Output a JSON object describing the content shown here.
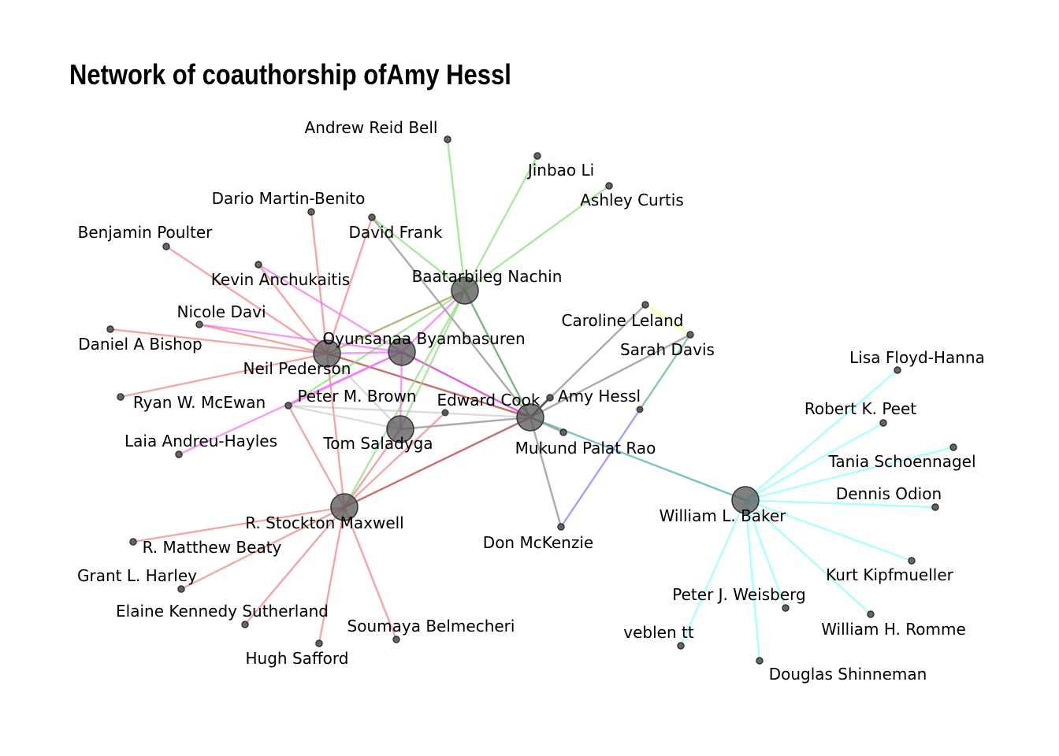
{
  "title": "Network of coauthorship ofAmy Hessl",
  "colors": {
    "node_fill": "#555555",
    "node_stroke": "#333333",
    "red": "#f08080",
    "darkred": "#b03030",
    "green": "#88dd77",
    "darkgreen": "#449944",
    "olive": "#999944",
    "pink": "#f070f0",
    "magenta": "#cc22cc",
    "gray": "#888888",
    "lightgray": "#cccccc",
    "cyan": "#88ffff",
    "teal": "#44aaaa",
    "blue": "#7777ff",
    "yellow": "#ffff66",
    "black": "#000000"
  },
  "nodes": [
    {
      "id": "amy",
      "label": "Amy Hessl",
      "hub": false
    },
    {
      "id": "baatar",
      "label": "Baatarbileg Nachin",
      "hub": true
    },
    {
      "id": "oyun",
      "label": "Oyunsanaa Byambasuren",
      "hub": true
    },
    {
      "id": "neil",
      "label": "Neil Pederson",
      "hub": true
    },
    {
      "id": "tom",
      "label": "Tom Saladyga",
      "hub": true
    },
    {
      "id": "edward",
      "label": "Edward Cook",
      "hub": true
    },
    {
      "id": "rsm",
      "label": "R. Stockton Maxwell",
      "hub": true
    },
    {
      "id": "wlb",
      "label": "William L. Baker",
      "hub": true
    },
    {
      "id": "andrew",
      "label": "Andrew Reid Bell",
      "hub": false
    },
    {
      "id": "jinbao",
      "label": "Jinbao Li",
      "hub": false
    },
    {
      "id": "ashley",
      "label": "Ashley Curtis",
      "hub": false
    },
    {
      "id": "dario",
      "label": "Dario Martin-Benito",
      "hub": false
    },
    {
      "id": "david",
      "label": "David Frank",
      "hub": false
    },
    {
      "id": "benjamin",
      "label": "Benjamin Poulter",
      "hub": false
    },
    {
      "id": "kevin",
      "label": "Kevin Anchukaitis",
      "hub": false
    },
    {
      "id": "nicole",
      "label": "Nicole Davi",
      "hub": false
    },
    {
      "id": "daniel",
      "label": "Daniel A Bishop",
      "hub": false
    },
    {
      "id": "ryan",
      "label": "Ryan W. McEwan",
      "hub": false
    },
    {
      "id": "peterb",
      "label": "Peter M. Brown",
      "hub": false
    },
    {
      "id": "laia",
      "label": "Laia Andreu-Hayles",
      "hub": false
    },
    {
      "id": "caroline",
      "label": "Caroline Leland",
      "hub": false
    },
    {
      "id": "sarah",
      "label": "Sarah Davis",
      "hub": false
    },
    {
      "id": "mukund",
      "label": "Mukund Palat Rao",
      "hub": false
    },
    {
      "id": "don",
      "label": "Don McKenzie",
      "hub": false
    },
    {
      "id": "rmb",
      "label": "R. Matthew Beaty",
      "hub": false
    },
    {
      "id": "grant",
      "label": "Grant L. Harley",
      "hub": false
    },
    {
      "id": "elaine",
      "label": "Elaine Kennedy Sutherland",
      "hub": false
    },
    {
      "id": "hugh",
      "label": "Hugh Safford",
      "hub": false
    },
    {
      "id": "soumaya",
      "label": "Soumaya Belmecheri",
      "hub": false
    },
    {
      "id": "lisa",
      "label": "Lisa Floyd-Hanna",
      "hub": false
    },
    {
      "id": "robert",
      "label": "Robert K. Peet",
      "hub": false
    },
    {
      "id": "tania",
      "label": "Tania Schoennagel",
      "hub": false
    },
    {
      "id": "dennis",
      "label": "Dennis Odion",
      "hub": false
    },
    {
      "id": "kurt",
      "label": "Kurt Kipfmueller",
      "hub": false
    },
    {
      "id": "peterw",
      "label": "Peter J. Weisberg",
      "hub": false
    },
    {
      "id": "william",
      "label": "William H. Romme",
      "hub": false
    },
    {
      "id": "veblen",
      "label": "veblen tt",
      "hub": false
    },
    {
      "id": "douglas",
      "label": "Douglas Shinneman",
      "hub": false
    }
  ],
  "edges": [
    [
      "edward",
      "baatar",
      "darkgreen"
    ],
    [
      "edward",
      "neil",
      "darkred"
    ],
    [
      "edward",
      "tom",
      "gray"
    ],
    [
      "edward",
      "rsm",
      "darkred"
    ],
    [
      "edward",
      "wlb",
      "teal"
    ],
    [
      "edward",
      "oyun",
      "magenta"
    ],
    [
      "edward",
      "amy",
      "black"
    ],
    [
      "edward",
      "caroline",
      "gray"
    ],
    [
      "edward",
      "sarah",
      "gray"
    ],
    [
      "edward",
      "mukund",
      "gray"
    ],
    [
      "edward",
      "don",
      "gray"
    ],
    [
      "edward",
      "peterb",
      "lightgray"
    ],
    [
      "edward",
      "david",
      "gray"
    ],
    [
      "baatar",
      "andrew",
      "green"
    ],
    [
      "baatar",
      "jinbao",
      "green"
    ],
    [
      "baatar",
      "ashley",
      "green"
    ],
    [
      "baatar",
      "david",
      "green"
    ],
    [
      "baatar",
      "neil",
      "olive"
    ],
    [
      "baatar",
      "oyun",
      "pink"
    ],
    [
      "baatar",
      "tom",
      "green"
    ],
    [
      "baatar",
      "peterb",
      "green"
    ],
    [
      "baatar",
      "rsm",
      "green"
    ],
    [
      "neil",
      "dario",
      "red"
    ],
    [
      "neil",
      "david",
      "red"
    ],
    [
      "neil",
      "benjamin",
      "red"
    ],
    [
      "neil",
      "kevin",
      "red"
    ],
    [
      "neil",
      "nicole",
      "red"
    ],
    [
      "neil",
      "daniel",
      "red"
    ],
    [
      "neil",
      "ryan",
      "red"
    ],
    [
      "neil",
      "oyun",
      "pink"
    ],
    [
      "neil",
      "rsm",
      "red"
    ],
    [
      "neil",
      "tom",
      "lightgray"
    ],
    [
      "oyun",
      "kevin",
      "pink"
    ],
    [
      "oyun",
      "nicole",
      "pink"
    ],
    [
      "oyun",
      "tom",
      "pink"
    ],
    [
      "oyun",
      "laia",
      "pink"
    ],
    [
      "oyun",
      "peterb",
      "pink"
    ],
    [
      "tom",
      "peterb",
      "lightgray"
    ],
    [
      "tom",
      "rsm",
      "red"
    ],
    [
      "rsm",
      "peterb",
      "red"
    ],
    [
      "rsm",
      "rmb",
      "red"
    ],
    [
      "rsm",
      "grant",
      "red"
    ],
    [
      "rsm",
      "elaine",
      "red"
    ],
    [
      "rsm",
      "hugh",
      "red"
    ],
    [
      "rsm",
      "soumaya",
      "red"
    ],
    [
      "rsm",
      "edwardnode",
      "red"
    ],
    [
      "sarah",
      "caroline",
      "yellow"
    ],
    [
      "sarah",
      "don",
      "blue"
    ],
    [
      "sarah",
      "ashleygreen",
      "green"
    ],
    [
      "wlb",
      "lisa",
      "cyan"
    ],
    [
      "wlb",
      "robert",
      "cyan"
    ],
    [
      "wlb",
      "tania",
      "cyan"
    ],
    [
      "wlb",
      "dennis",
      "cyan"
    ],
    [
      "wlb",
      "kurt",
      "cyan"
    ],
    [
      "wlb",
      "peterw",
      "cyan"
    ],
    [
      "wlb",
      "william",
      "cyan"
    ],
    [
      "wlb",
      "veblen",
      "cyan"
    ],
    [
      "wlb",
      "douglas",
      "cyan"
    ]
  ]
}
